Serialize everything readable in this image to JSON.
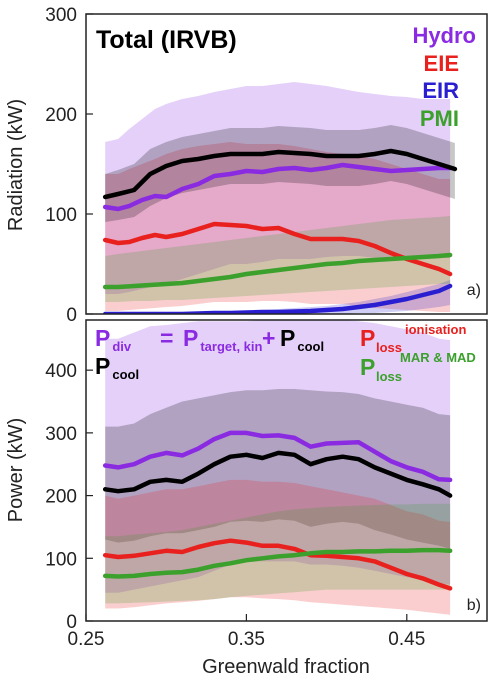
{
  "chart_data": [
    {
      "type": "line",
      "panel": "a)",
      "title": "Total (IRVB)",
      "ylabel": "Radiation (kW)",
      "xlim": [
        0.25,
        0.5
      ],
      "ylim": [
        0,
        300
      ],
      "yticks": [
        0,
        100,
        200,
        300
      ],
      "legend_position": "top-right",
      "series": [
        {
          "name": "Hydro",
          "color": "#8a2be2",
          "x": [
            0.262,
            0.27,
            0.277,
            0.285,
            0.293,
            0.3,
            0.31,
            0.32,
            0.33,
            0.34,
            0.35,
            0.36,
            0.37,
            0.38,
            0.39,
            0.4,
            0.41,
            0.42,
            0.43,
            0.44,
            0.45,
            0.46,
            0.47,
            0.477
          ],
          "values": [
            107,
            105,
            108,
            114,
            118,
            117,
            125,
            130,
            138,
            140,
            143,
            142,
            145,
            146,
            144,
            146,
            149,
            147,
            145,
            143,
            144,
            145,
            146,
            146
          ],
          "band_low": [
            20,
            20,
            22,
            25,
            28,
            30,
            35,
            40,
            45,
            50,
            50,
            52,
            55,
            55,
            55,
            57,
            58,
            58,
            56,
            55,
            56,
            56,
            56,
            56
          ],
          "band_high": [
            172,
            175,
            185,
            195,
            205,
            210,
            215,
            218,
            222,
            225,
            228,
            228,
            230,
            232,
            230,
            228,
            225,
            222,
            220,
            218,
            217,
            215,
            215,
            215
          ]
        },
        {
          "name": "EIE",
          "color": "#e8211e",
          "x": [
            0.262,
            0.27,
            0.277,
            0.285,
            0.293,
            0.3,
            0.31,
            0.32,
            0.33,
            0.34,
            0.35,
            0.36,
            0.37,
            0.38,
            0.39,
            0.4,
            0.41,
            0.42,
            0.43,
            0.44,
            0.45,
            0.46,
            0.47,
            0.477
          ],
          "values": [
            74,
            71,
            72,
            76,
            79,
            77,
            80,
            85,
            90,
            89,
            88,
            85,
            86,
            80,
            75,
            75,
            75,
            73,
            68,
            61,
            55,
            50,
            45,
            40
          ],
          "band_low": [
            3,
            3,
            4,
            5,
            6,
            7,
            8,
            10,
            12,
            12,
            12,
            13,
            13,
            12,
            10,
            10,
            10,
            8,
            6,
            5,
            4,
            3,
            2,
            2
          ],
          "band_high": [
            140,
            140,
            145,
            150,
            155,
            160,
            165,
            168,
            170,
            172,
            170,
            170,
            170,
            168,
            165,
            162,
            160,
            158,
            155,
            150,
            145,
            140,
            135,
            135
          ]
        },
        {
          "name": "EIR",
          "color": "#2a1fd0",
          "x": [
            0.262,
            0.27,
            0.28,
            0.29,
            0.3,
            0.31,
            0.32,
            0.33,
            0.34,
            0.35,
            0.36,
            0.37,
            0.38,
            0.39,
            0.4,
            0.41,
            0.42,
            0.43,
            0.44,
            0.45,
            0.46,
            0.47,
            0.477
          ],
          "values": [
            0,
            0,
            0,
            0,
            0,
            0,
            0.5,
            1,
            1,
            1.5,
            2,
            2,
            2.5,
            3,
            4,
            5,
            7,
            9,
            12,
            15,
            19,
            23,
            28
          ],
          "band_low": [
            0,
            0,
            0,
            0,
            0,
            0,
            0,
            0,
            0,
            0,
            0,
            0,
            0,
            0,
            0,
            0,
            1,
            1,
            2,
            3,
            5,
            7,
            9
          ],
          "band_high": [
            1,
            1,
            1,
            1,
            1,
            1,
            2,
            2,
            3,
            3,
            4,
            5,
            6,
            7,
            8,
            10,
            12,
            15,
            18,
            22,
            26,
            30,
            34
          ]
        },
        {
          "name": "PMI",
          "color": "#3ba02c",
          "x": [
            0.262,
            0.27,
            0.28,
            0.29,
            0.3,
            0.31,
            0.32,
            0.33,
            0.34,
            0.35,
            0.36,
            0.37,
            0.38,
            0.39,
            0.4,
            0.41,
            0.42,
            0.43,
            0.44,
            0.45,
            0.46,
            0.47,
            0.477
          ],
          "values": [
            27,
            27,
            28,
            29,
            30,
            31,
            33,
            35,
            37,
            40,
            42,
            44,
            46,
            48,
            50,
            51,
            53,
            54,
            55,
            56,
            57,
            58,
            59
          ],
          "band_low": [
            12,
            12,
            13,
            13,
            14,
            14,
            15,
            16,
            17,
            18,
            19,
            20,
            21,
            22,
            23,
            24,
            25,
            26,
            27,
            28,
            29,
            30,
            30
          ],
          "band_high": [
            58,
            60,
            62,
            64,
            66,
            68,
            70,
            72,
            74,
            76,
            78,
            80,
            82,
            84,
            86,
            88,
            90,
            92,
            94,
            95,
            96,
            97,
            98
          ]
        },
        {
          "name": "Total (IRVB)",
          "color": "#000000",
          "x": [
            0.262,
            0.27,
            0.28,
            0.29,
            0.3,
            0.31,
            0.32,
            0.33,
            0.34,
            0.35,
            0.36,
            0.37,
            0.38,
            0.39,
            0.4,
            0.41,
            0.42,
            0.43,
            0.44,
            0.45,
            0.46,
            0.47,
            0.48
          ],
          "values": [
            117,
            120,
            124,
            140,
            148,
            153,
            155,
            158,
            160,
            160,
            160,
            162,
            161,
            160,
            158,
            158,
            158,
            160,
            163,
            160,
            155,
            150,
            145
          ],
          "band_low": [
            92,
            94,
            97,
            108,
            116,
            121,
            124,
            127,
            130,
            130,
            130,
            132,
            131,
            130,
            128,
            128,
            128,
            130,
            133,
            130,
            125,
            120,
            115
          ],
          "band_high": [
            140,
            144,
            150,
            165,
            172,
            177,
            180,
            183,
            186,
            186,
            186,
            188,
            187,
            186,
            184,
            184,
            184,
            186,
            189,
            186,
            181,
            176,
            171
          ]
        }
      ]
    },
    {
      "type": "line",
      "panel": "b)",
      "xlabel": "Greenwald fraction",
      "ylabel": "Power (kW)",
      "xlim": [
        0.25,
        0.5
      ],
      "ylim": [
        0,
        480
      ],
      "xticks": [
        0.25,
        0.35,
        0.45
      ],
      "yticks": [
        0,
        100,
        200,
        300,
        400
      ],
      "legend_position": "top",
      "legend": {
        "pdiv": "P",
        "pdiv_sub": "div",
        "eq": "=",
        "ptarget": "P",
        "ptarget_sub": "target, kin",
        "plus": "+",
        "pcool1": "P",
        "pcool1_sub": "cool",
        "pcool2": "P",
        "pcool2_sub": "cool",
        "ploss_ion": "P",
        "ploss_ion_sup": "ionisation",
        "ploss_ion_sub": "loss",
        "ploss_mar": "P",
        "ploss_mar_sup": "MAR & MAD",
        "ploss_mar_sub": "loss"
      },
      "series": [
        {
          "name": "P_div",
          "color": "#8a2be2",
          "x": [
            0.262,
            0.27,
            0.28,
            0.29,
            0.3,
            0.31,
            0.32,
            0.33,
            0.34,
            0.35,
            0.36,
            0.37,
            0.38,
            0.39,
            0.4,
            0.41,
            0.42,
            0.43,
            0.44,
            0.45,
            0.46,
            0.47,
            0.477
          ],
          "values": [
            248,
            245,
            250,
            262,
            268,
            264,
            275,
            290,
            300,
            300,
            295,
            296,
            292,
            278,
            283,
            284,
            285,
            270,
            255,
            245,
            238,
            226,
            225
          ],
          "band_low": [
            45,
            45,
            50,
            55,
            60,
            65,
            70,
            80,
            90,
            95,
            95,
            95,
            95,
            90,
            90,
            88,
            85,
            80,
            75,
            70,
            65,
            60,
            58
          ],
          "band_high": [
            450,
            450,
            460,
            470,
            472,
            475,
            478,
            478,
            478,
            478,
            480,
            480,
            480,
            480,
            480,
            480,
            478,
            475,
            470,
            465,
            460,
            450,
            448
          ]
        },
        {
          "name": "P_cool",
          "color": "#000000",
          "x": [
            0.262,
            0.27,
            0.28,
            0.29,
            0.3,
            0.31,
            0.32,
            0.33,
            0.34,
            0.35,
            0.36,
            0.37,
            0.38,
            0.39,
            0.4,
            0.41,
            0.42,
            0.43,
            0.44,
            0.45,
            0.46,
            0.47,
            0.477
          ],
          "values": [
            210,
            207,
            210,
            222,
            225,
            222,
            235,
            250,
            262,
            265,
            260,
            268,
            265,
            250,
            258,
            262,
            258,
            245,
            235,
            225,
            218,
            210,
            200
          ],
          "band_low": [
            130,
            125,
            128,
            135,
            140,
            140,
            145,
            150,
            158,
            160,
            158,
            162,
            160,
            150,
            155,
            158,
            155,
            145,
            138,
            130,
            125,
            120,
            115
          ],
          "band_high": [
            310,
            310,
            315,
            330,
            340,
            350,
            355,
            360,
            365,
            368,
            368,
            370,
            370,
            368,
            366,
            365,
            362,
            355,
            350,
            345,
            340,
            330,
            328
          ]
        },
        {
          "name": "P_loss ionisation",
          "color": "#e8211e",
          "x": [
            0.262,
            0.27,
            0.28,
            0.29,
            0.3,
            0.31,
            0.32,
            0.33,
            0.34,
            0.35,
            0.36,
            0.37,
            0.38,
            0.39,
            0.4,
            0.41,
            0.42,
            0.43,
            0.44,
            0.45,
            0.46,
            0.47,
            0.477
          ],
          "values": [
            105,
            102,
            104,
            108,
            112,
            110,
            118,
            124,
            128,
            125,
            120,
            120,
            115,
            105,
            104,
            102,
            100,
            95,
            85,
            75,
            68,
            58,
            52
          ],
          "band_low": [
            20,
            20,
            22,
            25,
            28,
            30,
            32,
            35,
            38,
            38,
            36,
            35,
            33,
            30,
            28,
            26,
            24,
            22,
            20,
            18,
            15,
            12,
            10
          ],
          "band_high": [
            200,
            195,
            200,
            205,
            210,
            210,
            215,
            220,
            225,
            225,
            222,
            222,
            220,
            215,
            210,
            205,
            200,
            195,
            185,
            175,
            170,
            160,
            158
          ]
        },
        {
          "name": "P_loss MAR & MAD",
          "color": "#3ba02c",
          "x": [
            0.262,
            0.27,
            0.28,
            0.29,
            0.3,
            0.31,
            0.32,
            0.33,
            0.34,
            0.35,
            0.36,
            0.37,
            0.38,
            0.39,
            0.4,
            0.41,
            0.42,
            0.43,
            0.44,
            0.45,
            0.46,
            0.47,
            0.477
          ],
          "values": [
            72,
            71,
            72,
            75,
            77,
            78,
            82,
            88,
            92,
            97,
            100,
            103,
            105,
            108,
            110,
            110,
            111,
            111,
            112,
            112,
            113,
            113,
            112
          ],
          "band_low": [
            28,
            28,
            29,
            30,
            31,
            32,
            33,
            35,
            38,
            40,
            42,
            44,
            46,
            48,
            50,
            50,
            50,
            50,
            50,
            50,
            50,
            50,
            50
          ],
          "band_high": [
            135,
            135,
            138,
            140,
            142,
            145,
            150,
            155,
            160,
            165,
            170,
            175,
            178,
            180,
            182,
            183,
            184,
            185,
            186,
            186,
            187,
            187,
            187
          ]
        }
      ]
    }
  ]
}
